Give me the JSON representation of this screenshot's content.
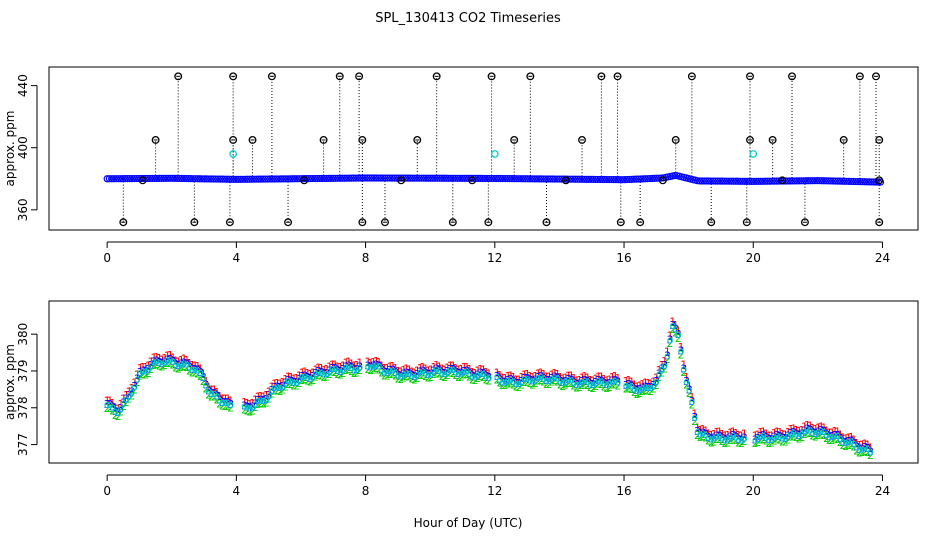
{
  "figure": {
    "title": "SPL_130413  CO2 Timeseries",
    "xlabel": "Hour of Day (UTC)"
  },
  "chart_data": [
    {
      "type": "scatter",
      "title": "",
      "xlabel": "",
      "ylabel": "approx. ppm",
      "xlim": [
        -1.8,
        25.1
      ],
      "ylim": [
        347,
        452
      ],
      "x_ticks": [
        0,
        4,
        8,
        12,
        16,
        20,
        24
      ],
      "y_ticks": [
        360,
        400,
        440
      ],
      "grid": false,
      "style": "points with vertical dotted spikes",
      "series": [
        {
          "color": "#0000ff",
          "marker": "circle",
          "baseline": [
            [
              0,
              380.0
            ],
            [
              2,
              380.3
            ],
            [
              4,
              379.6
            ],
            [
              8,
              380.5
            ],
            [
              12,
              380.2
            ],
            [
              16,
              379.4
            ],
            [
              17.2,
              380.5
            ],
            [
              17.6,
              382.2
            ],
            [
              18.3,
              378.6
            ],
            [
              20,
              378.3
            ],
            [
              22,
              378.8
            ],
            [
              24,
              377.8
            ]
          ]
        },
        {
          "color": "#00cccc",
          "marker": "circle",
          "points": [
            [
              3.9,
              396
            ],
            [
              12.0,
              396
            ],
            [
              20.0,
              396
            ]
          ]
        },
        {
          "color": "#000000",
          "marker": "circle-cross",
          "points": [
            [
              2.2,
              446
            ],
            [
              3.9,
              446
            ],
            [
              5.1,
              446
            ],
            [
              7.2,
              446
            ],
            [
              7.8,
              446
            ],
            [
              10.2,
              446
            ],
            [
              11.9,
              446
            ],
            [
              13.1,
              446
            ],
            [
              15.3,
              446
            ],
            [
              15.8,
              446
            ],
            [
              18.1,
              446
            ],
            [
              19.9,
              446
            ],
            [
              21.2,
              446
            ],
            [
              23.3,
              446
            ],
            [
              23.8,
              446
            ],
            [
              1.5,
              405
            ],
            [
              3.9,
              405
            ],
            [
              4.5,
              405
            ],
            [
              6.7,
              405
            ],
            [
              7.9,
              405
            ],
            [
              9.6,
              405
            ],
            [
              12.6,
              405
            ],
            [
              14.7,
              405
            ],
            [
              17.6,
              405
            ],
            [
              19.9,
              405
            ],
            [
              20.6,
              405
            ],
            [
              22.8,
              405
            ],
            [
              23.9,
              405
            ],
            [
              0.5,
              352
            ],
            [
              2.7,
              352
            ],
            [
              3.8,
              352
            ],
            [
              5.6,
              352
            ],
            [
              7.9,
              352
            ],
            [
              8.6,
              352
            ],
            [
              10.7,
              352
            ],
            [
              11.8,
              352
            ],
            [
              13.6,
              352
            ],
            [
              15.9,
              352
            ],
            [
              16.5,
              352
            ],
            [
              18.7,
              352
            ],
            [
              19.8,
              352
            ],
            [
              21.6,
              352
            ],
            [
              23.9,
              352
            ],
            [
              1.1,
              379
            ],
            [
              6.1,
              379
            ],
            [
              9.1,
              379
            ],
            [
              11.3,
              379
            ],
            [
              14.2,
              379
            ],
            [
              17.2,
              379
            ],
            [
              20.9,
              379
            ],
            [
              23.9,
              379
            ]
          ]
        }
      ]
    },
    {
      "type": "scatter",
      "title": "",
      "xlabel": "Hour of Day (UTC)",
      "ylabel": "approx. ppm",
      "xlim": [
        -1.8,
        25.1
      ],
      "ylim": [
        376.5,
        380.9
      ],
      "x_ticks": [
        0,
        4,
        8,
        12,
        16,
        20,
        24
      ],
      "y_ticks": [
        377,
        378,
        379,
        380
      ],
      "grid": false,
      "style": "overplotted characters",
      "series": [
        {
          "marker_text": "1",
          "color": "#ff0000",
          "offset": 0.1
        },
        {
          "marker_text": "2",
          "color": "#00cc00",
          "offset": -0.1
        },
        {
          "marker_text": "3",
          "color": "#0000ff",
          "offset": 0.0
        },
        {
          "marker_text": "o",
          "color": "#00cccc",
          "offset": 0.0
        }
      ],
      "curve": [
        [
          0,
          378.1
        ],
        [
          0.3,
          377.9
        ],
        [
          0.6,
          378.2
        ],
        [
          1.0,
          378.9
        ],
        [
          1.4,
          379.2
        ],
        [
          1.8,
          379.3
        ],
        [
          2.3,
          379.2
        ],
        [
          2.7,
          379.1
        ],
        [
          3.0,
          378.8
        ],
        [
          3.2,
          378.4
        ],
        [
          3.6,
          378.2
        ],
        [
          3.9,
          378.0
        ],
        [
          4.3,
          378.0
        ],
        [
          4.8,
          378.2
        ],
        [
          5.3,
          378.6
        ],
        [
          6.0,
          378.8
        ],
        [
          6.8,
          379.0
        ],
        [
          7.5,
          379.1
        ],
        [
          7.8,
          379.1
        ],
        [
          8.1,
          379.2
        ],
        [
          8.7,
          379.0
        ],
        [
          9.3,
          378.9
        ],
        [
          10.2,
          379.0
        ],
        [
          10.9,
          379.0
        ],
        [
          11.4,
          378.9
        ],
        [
          11.8,
          378.9
        ],
        [
          12.1,
          378.8
        ],
        [
          12.6,
          378.7
        ],
        [
          13.2,
          378.8
        ],
        [
          13.8,
          378.8
        ],
        [
          14.5,
          378.7
        ],
        [
          15.2,
          378.7
        ],
        [
          15.8,
          378.7
        ],
        [
          16.1,
          378.6
        ],
        [
          16.6,
          378.5
        ],
        [
          17.0,
          378.7
        ],
        [
          17.3,
          379.3
        ],
        [
          17.5,
          380.2
        ],
        [
          17.7,
          380.0
        ],
        [
          17.9,
          378.8
        ],
        [
          18.1,
          378.2
        ],
        [
          18.3,
          377.3
        ],
        [
          18.8,
          377.2
        ],
        [
          19.3,
          377.2
        ],
        [
          19.7,
          377.2
        ],
        [
          20.1,
          377.2
        ],
        [
          20.8,
          377.2
        ],
        [
          21.3,
          377.3
        ],
        [
          21.8,
          377.4
        ],
        [
          22.3,
          377.3
        ],
        [
          22.9,
          377.1
        ],
        [
          23.4,
          376.9
        ],
        [
          23.7,
          376.8
        ]
      ],
      "gaps": [
        [
          3.85,
          4.2
        ],
        [
          7.85,
          8.05
        ],
        [
          11.85,
          12.05
        ],
        [
          15.85,
          16.05
        ],
        [
          19.75,
          20.05
        ]
      ]
    }
  ]
}
